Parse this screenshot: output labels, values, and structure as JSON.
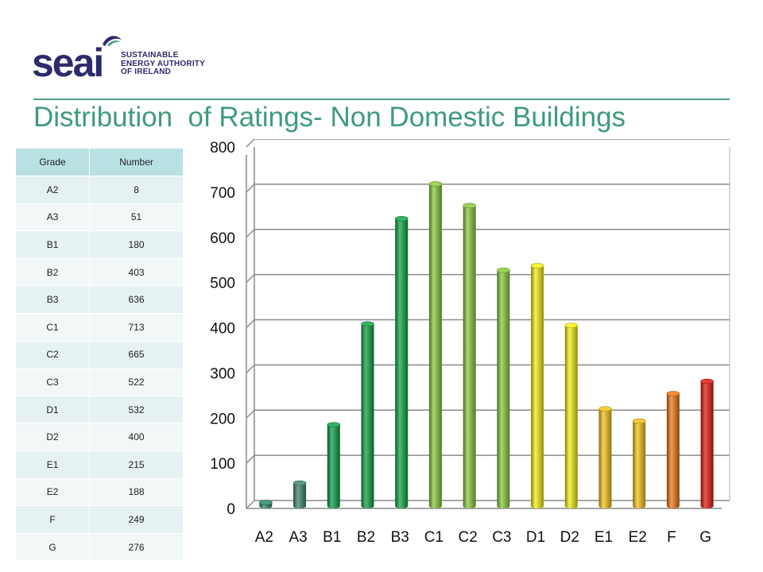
{
  "logo": {
    "word": "seai",
    "line1": "SUSTAINABLE",
    "line2": "ENERGY AUTHORITY",
    "line3": "OF IRELAND",
    "brand_color": "#2d2a6e",
    "accent_color": "#3f9a80"
  },
  "title": "Distribution  of Ratings- Non Domestic Buildings",
  "table": {
    "headers": [
      "Grade",
      "Number"
    ],
    "rows": [
      [
        "A2",
        "8"
      ],
      [
        "A3",
        "51"
      ],
      [
        "B1",
        "180"
      ],
      [
        "B2",
        "403"
      ],
      [
        "B3",
        "636"
      ],
      [
        "C1",
        "713"
      ],
      [
        "C2",
        "665"
      ],
      [
        "C3",
        "522"
      ],
      [
        "D1",
        "532"
      ],
      [
        "D2",
        "400"
      ],
      [
        "E1",
        "215"
      ],
      [
        "E2",
        "188"
      ],
      [
        "F",
        "249"
      ],
      [
        "G",
        "276"
      ]
    ]
  },
  "chart_data": {
    "type": "bar",
    "categories": [
      "A2",
      "A3",
      "B1",
      "B2",
      "B3",
      "C1",
      "C2",
      "C3",
      "D1",
      "D2",
      "E1",
      "E2",
      "F",
      "G"
    ],
    "values": [
      8,
      51,
      180,
      403,
      636,
      713,
      665,
      522,
      532,
      400,
      215,
      188,
      249,
      276
    ],
    "colors": [
      "#2e8a6a",
      "#3d8a6c",
      "#0fa048",
      "#12a347",
      "#14a646",
      "#8ecb3e",
      "#8ecb3e",
      "#8ecb3e",
      "#f3f016",
      "#f3f016",
      "#f6c41a",
      "#f6c41a",
      "#f07818",
      "#e51a14"
    ],
    "ylim": [
      0,
      800
    ],
    "yticks": [
      0,
      100,
      200,
      300,
      400,
      500,
      600,
      700,
      800
    ],
    "grid": true,
    "legend": "none",
    "style": "3d-cylinder"
  }
}
